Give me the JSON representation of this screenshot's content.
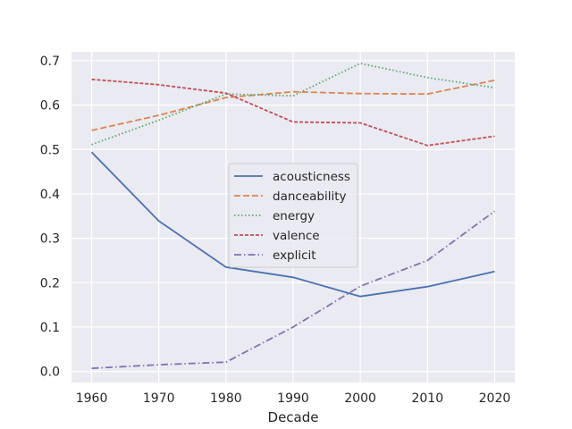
{
  "chart_data": {
    "type": "line",
    "title": "",
    "xlabel": "Decade",
    "ylabel": "",
    "x": [
      1960,
      1970,
      1980,
      1990,
      2000,
      2010,
      2020
    ],
    "xlim": [
      1957,
      2023
    ],
    "ylim": [
      -0.025,
      0.72
    ],
    "xticks": [
      "1960",
      "1970",
      "1980",
      "1990",
      "2000",
      "2010",
      "2020"
    ],
    "yticks": [
      "0.0",
      "0.1",
      "0.2",
      "0.3",
      "0.4",
      "0.5",
      "0.6",
      "0.7"
    ],
    "grid": true,
    "legend_position": "center",
    "series": [
      {
        "name": "acousticness",
        "color": "#4c72b0",
        "dash": "solid",
        "values": [
          0.494,
          0.339,
          0.235,
          0.212,
          0.169,
          0.191,
          0.225
        ]
      },
      {
        "name": "danceability",
        "color": "#dd8452",
        "dash": "dashed",
        "values": [
          0.543,
          0.577,
          0.617,
          0.63,
          0.626,
          0.625,
          0.656
        ]
      },
      {
        "name": "energy",
        "color": "#55a868",
        "dash": "dotted",
        "values": [
          0.511,
          0.566,
          0.625,
          0.621,
          0.694,
          0.662,
          0.639
        ]
      },
      {
        "name": "valence",
        "color": "#c44e52",
        "dash": "densely-dashed",
        "values": [
          0.658,
          0.646,
          0.627,
          0.562,
          0.56,
          0.509,
          0.53
        ]
      },
      {
        "name": "explicit",
        "color": "#8172b3",
        "dash": "dashdot",
        "values": [
          0.007,
          0.015,
          0.021,
          0.1,
          0.192,
          0.25,
          0.361
        ]
      }
    ]
  }
}
